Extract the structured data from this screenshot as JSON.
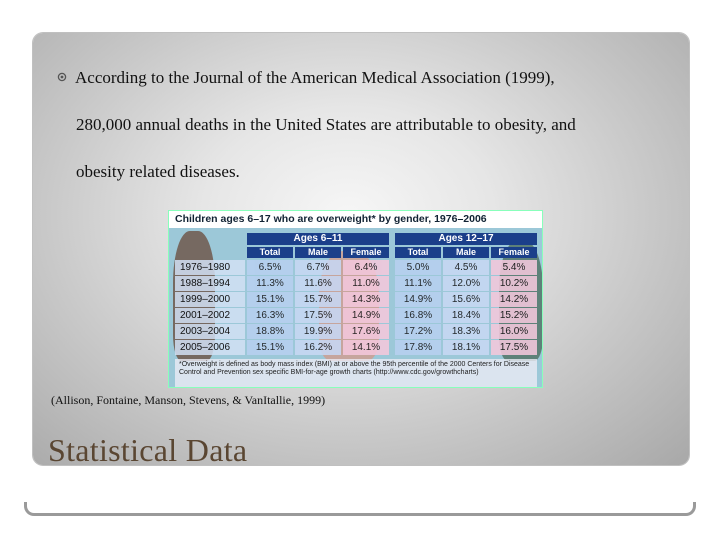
{
  "slide": {
    "bullet_lines": [
      "According to the Journal of the American Medical Association (1999),",
      "280,000 annual deaths in the United States are attributable to obesity, and",
      "obesity related diseases."
    ],
    "citation": "(Allison, Fontaine, Manson, Stevens, & VanItallie, 1999)",
    "heading": "Statistical Data"
  },
  "table_figure": {
    "title": "Children ages 6–17 who are overweight* by gender, 1976–2006",
    "groups": [
      "Ages 6–11",
      "Ages 12–17"
    ],
    "columns": [
      "Total",
      "Male",
      "Female",
      "Total",
      "Male",
      "Female"
    ],
    "rows": [
      {
        "period": "1976–1980",
        "values": [
          "6.5%",
          "6.7%",
          "6.4%",
          "5.0%",
          "4.5%",
          "5.4%"
        ]
      },
      {
        "period": "1988–1994",
        "values": [
          "11.3%",
          "11.6%",
          "11.0%",
          "11.1%",
          "12.0%",
          "10.2%"
        ]
      },
      {
        "period": "1999–2000",
        "values": [
          "15.1%",
          "15.7%",
          "14.3%",
          "14.9%",
          "15.6%",
          "14.2%"
        ]
      },
      {
        "period": "2001–2002",
        "values": [
          "16.3%",
          "17.5%",
          "14.9%",
          "16.8%",
          "18.4%",
          "15.2%"
        ]
      },
      {
        "period": "2003–2004",
        "values": [
          "18.8%",
          "19.9%",
          "17.6%",
          "17.2%",
          "18.3%",
          "16.0%"
        ]
      },
      {
        "period": "2005–2006",
        "values": [
          "15.1%",
          "16.2%",
          "14.1%",
          "17.8%",
          "18.1%",
          "17.5%"
        ]
      }
    ],
    "footnote": "*Overweight is defined as body mass index (BMI) at or above the 95th percentile of the 2000 Centers for Disease Control and Prevention sex specific BMI-for-age growth charts (http://www.cdc.gov/growthcharts)"
  },
  "colors": {
    "heading": "#5a4632",
    "header_band": "#1b3f8a",
    "total_col": "#b8d0f0",
    "male_col": "#c8d8f4",
    "female_col": "#f4c8dc"
  }
}
